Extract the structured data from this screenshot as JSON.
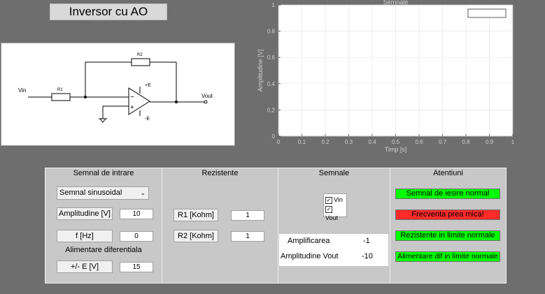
{
  "title": "Inversor cu AO",
  "schematic": {
    "vin": "Vin",
    "vout": "Vout",
    "r1": "R1",
    "r2": "R2",
    "plus_e": "+E",
    "minus_e": "-E",
    "plus": "+",
    "minus": "−"
  },
  "plot": {
    "title": "Semnale",
    "xlabel": "Timp [s]",
    "ylabel": "Amplitudine [V]",
    "x_ticks": [
      "0",
      "0.1",
      "0.2",
      "0.3",
      "0.4",
      "0.5",
      "0.6",
      "0.7",
      "0.8",
      "0.9",
      "1"
    ],
    "y_ticks": [
      "0",
      "0.2",
      "0.4",
      "0.6",
      "0.8",
      "1"
    ]
  },
  "chart_data": {
    "type": "line",
    "title": "Semnale",
    "xlabel": "Timp [s]",
    "ylabel": "Amplitudine [V]",
    "xlim": [
      0,
      1
    ],
    "ylim": [
      0,
      1
    ],
    "series": [],
    "legend": "top-right",
    "grid": true
  },
  "input_panel": {
    "title": "Semnal de intrare",
    "signal_type": "Semnal sinusoidal",
    "amplitude_label": "Amplitudine [V]",
    "amplitude_value": "10",
    "freq_label": "f [Hz]",
    "freq_value": "0",
    "supply_heading": "Alimentare diferentiala",
    "supply_label": "+/- E [V]",
    "supply_value": "15"
  },
  "resist_panel": {
    "title": "Rezistente",
    "r1_label": "R1 [Kohm]",
    "r1_value": "1",
    "r2_label": "R2 [Kohm]",
    "r2_value": "1"
  },
  "signals_panel": {
    "title": "Semnale",
    "vin_label": "Vin",
    "vout_label": "Vout",
    "gain_label": "Amplificarea",
    "gain_value": "-1",
    "vout_amp_label": "Amplitudine Vout",
    "vout_amp_value": "-10"
  },
  "alerts_panel": {
    "title": "Atentiuni",
    "a1": "Semnal de iesire normal",
    "a2": "Frecventa prea mica!",
    "a3": "Rezistente in limite normale",
    "a4": "Alimentare dif in limite normale",
    "colors": {
      "ok": "#00ff00",
      "bad": "#ff2a2a"
    }
  }
}
